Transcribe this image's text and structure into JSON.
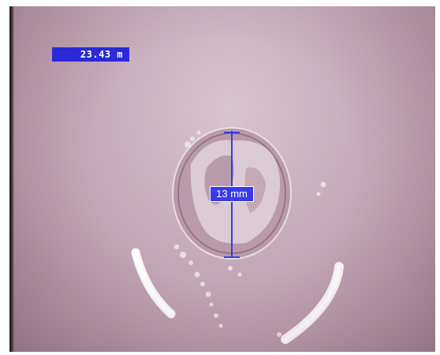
{
  "overlay": {
    "distance_readout": "23.43 m",
    "measurement_label": "13 mm"
  },
  "colors": {
    "overlay_blue": "#2b29d8",
    "measure_line": "#3b3be0",
    "pipe_tint": "#c9b1bf"
  },
  "icons": {
    "measure_cap": "crosshair-tick"
  }
}
